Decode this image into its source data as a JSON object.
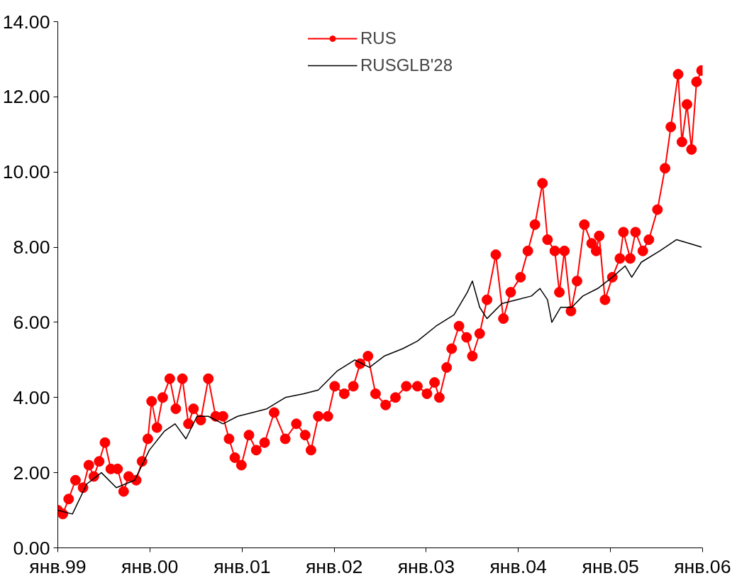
{
  "chart_data": {
    "type": "line",
    "xlim": [
      "1999-01-01",
      "2006-01-01"
    ],
    "xticks": [
      {
        "value": "1999-01-01",
        "label": "янв.99"
      },
      {
        "value": "2000-01-01",
        "label": "янв.00"
      },
      {
        "value": "2001-01-01",
        "label": "янв.01"
      },
      {
        "value": "2002-01-01",
        "label": "янв.02"
      },
      {
        "value": "2003-01-01",
        "label": "янв.03"
      },
      {
        "value": "2004-01-01",
        "label": "янв.04"
      },
      {
        "value": "2005-01-01",
        "label": "янв.05"
      },
      {
        "value": "2006-01-01",
        "label": "янв.06"
      }
    ],
    "ylim": [
      0,
      14
    ],
    "yticks": [
      {
        "value": 0,
        "label": "0.00"
      },
      {
        "value": 2,
        "label": "2.00"
      },
      {
        "value": 4,
        "label": "4.00"
      },
      {
        "value": 6,
        "label": "6.00"
      },
      {
        "value": 8,
        "label": "8.00"
      },
      {
        "value": 10,
        "label": "10.00"
      },
      {
        "value": 12,
        "label": "12.00"
      },
      {
        "value": 14,
        "label": "14.00"
      }
    ],
    "grid": false,
    "legend": "top",
    "series": [
      {
        "name": "RUS",
        "color": "#ff0000",
        "marker": "circle",
        "x": [
          "1999-01-01",
          "1999-01-21",
          "1999-02-13",
          "1999-03-12",
          "1999-04-11",
          "1999-05-04",
          "1999-05-24",
          "1999-06-14",
          "1999-07-07",
          "1999-07-30",
          "1999-08-26",
          "1999-09-19",
          "1999-10-09",
          "1999-11-08",
          "1999-12-01",
          "1999-12-24",
          "2000-01-08",
          "2000-01-29",
          "2000-02-21",
          "2000-03-20",
          "2000-04-13",
          "2000-05-09",
          "2000-06-02",
          "2000-06-22",
          "2000-07-21",
          "2000-08-20",
          "2000-09-18",
          "2000-10-17",
          "2000-11-10",
          "2000-12-03",
          "2000-12-29",
          "2001-01-28",
          "2001-02-26",
          "2001-03-31",
          "2001-05-08",
          "2001-06-21",
          "2001-08-04",
          "2001-09-08",
          "2001-10-01",
          "2001-10-30",
          "2001-12-07",
          "2002-01-03",
          "2002-02-10",
          "2002-03-18",
          "2002-04-14",
          "2002-05-15",
          "2002-06-14",
          "2002-07-24",
          "2002-09-01",
          "2002-10-14",
          "2002-11-27",
          "2003-01-04",
          "2003-02-03",
          "2003-02-22",
          "2003-03-23",
          "2003-04-12",
          "2003-05-11",
          "2003-06-10",
          "2003-07-03",
          "2003-08-01",
          "2003-08-30",
          "2003-10-04",
          "2003-11-03",
          "2003-12-02",
          "2004-01-10",
          "2004-02-08",
          "2004-03-07",
          "2004-04-06",
          "2004-04-26",
          "2004-05-25",
          "2004-06-12",
          "2004-07-02",
          "2004-07-28",
          "2004-08-21",
          "2004-09-19",
          "2004-10-18",
          "2004-11-05",
          "2004-11-17",
          "2004-12-10",
          "2005-01-08",
          "2005-02-07",
          "2005-02-21",
          "2005-03-20",
          "2005-04-10",
          "2005-05-09",
          "2005-06-02",
          "2005-07-06",
          "2005-08-05",
          "2005-08-28",
          "2005-09-26",
          "2005-10-11",
          "2005-10-31",
          "2005-11-18",
          "2005-12-08",
          "2005-12-28"
        ],
        "values": [
          1.0,
          0.9,
          1.3,
          1.8,
          1.6,
          2.2,
          1.9,
          2.3,
          2.8,
          2.1,
          2.1,
          1.5,
          1.9,
          1.8,
          2.3,
          2.9,
          3.9,
          3.2,
          4.0,
          4.5,
          3.7,
          4.5,
          3.3,
          3.7,
          3.4,
          4.5,
          3.5,
          3.5,
          2.9,
          2.4,
          2.2,
          3.0,
          2.6,
          2.8,
          3.6,
          2.9,
          3.3,
          3.0,
          2.6,
          3.5,
          3.5,
          4.3,
          4.1,
          4.3,
          4.9,
          5.1,
          4.1,
          3.8,
          4.0,
          4.3,
          4.3,
          4.1,
          4.4,
          4.0,
          4.8,
          5.3,
          5.9,
          5.6,
          5.1,
          5.7,
          6.6,
          7.8,
          6.1,
          6.8,
          7.2,
          7.9,
          8.6,
          9.7,
          8.2,
          7.9,
          6.8,
          7.9,
          6.3,
          7.1,
          8.6,
          8.1,
          7.9,
          8.3,
          6.6,
          7.2,
          7.7,
          8.4,
          7.7,
          8.4,
          7.9,
          8.2,
          9.0,
          10.1,
          11.2,
          12.6,
          10.8,
          11.8,
          10.6,
          12.4,
          12.7
        ]
      },
      {
        "name": "RUSGLB'28",
        "color": "#000000",
        "marker": "none",
        "x": [
          "1999-01-01",
          "1999-02-28",
          "1999-04-26",
          "1999-06-23",
          "1999-08-21",
          "1999-11-02",
          "1999-12-30",
          "2000-02-27",
          "2000-04-10",
          "2000-05-23",
          "2000-07-06",
          "2000-08-20",
          "2000-10-17",
          "2000-12-14",
          "2001-02-11",
          "2001-04-09",
          "2001-06-21",
          "2001-09-02",
          "2001-10-30",
          "2002-01-12",
          "2002-03-24",
          "2002-05-21",
          "2002-07-18",
          "2002-09-30",
          "2002-11-27",
          "2003-02-09",
          "2003-04-21",
          "2003-06-13",
          "2003-07-03",
          "2003-08-01",
          "2003-08-30",
          "2003-10-28",
          "2003-12-25",
          "2004-02-22",
          "2004-03-27",
          "2004-04-26",
          "2004-05-13",
          "2004-06-17",
          "2004-07-31",
          "2004-09-13",
          "2004-11-11",
          "2005-01-08",
          "2005-02-28",
          "2005-03-26",
          "2005-05-03",
          "2005-07-15",
          "2005-09-20",
          "2005-11-09",
          "2005-12-28"
        ],
        "values": [
          1.0,
          0.9,
          1.7,
          2.0,
          1.6,
          1.8,
          2.6,
          3.1,
          3.3,
          2.9,
          3.5,
          3.5,
          3.3,
          3.5,
          3.6,
          3.7,
          4.0,
          4.1,
          4.2,
          4.7,
          5.0,
          4.8,
          5.1,
          5.3,
          5.5,
          5.9,
          6.2,
          6.8,
          7.1,
          6.4,
          6.1,
          6.5,
          6.6,
          6.7,
          6.9,
          6.6,
          6.0,
          6.4,
          6.4,
          6.7,
          6.9,
          7.2,
          7.5,
          7.2,
          7.6,
          7.9,
          8.2,
          8.1,
          8.0
        ]
      }
    ]
  }
}
